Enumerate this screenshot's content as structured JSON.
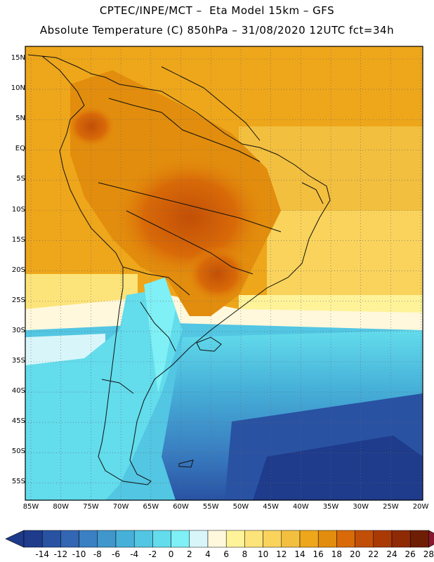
{
  "title_line1": "CPTEC/INPE/MCT –  Eta Model 15km – GFS",
  "title_line2": "Absolute Temperature (C) 850hPa – 31/08/2020 12UTC fct=34h",
  "lat_labels": [
    "15N",
    "10N",
    "5N",
    "EQ",
    "5S",
    "10S",
    "15S",
    "20S",
    "25S",
    "30S",
    "35S",
    "40S",
    "45S",
    "50S",
    "55S"
  ],
  "lon_labels": [
    "85W",
    "80W",
    "75W",
    "70W",
    "65W",
    "60W",
    "55W",
    "50W",
    "45W",
    "40W",
    "35W",
    "30W",
    "25W",
    "20W"
  ],
  "colorbar": {
    "ticks": [
      "-14",
      "-12",
      "-10",
      "-8",
      "-6",
      "-4",
      "-2",
      "0",
      "2",
      "4",
      "6",
      "8",
      "10",
      "12",
      "14",
      "16",
      "18",
      "20",
      "22",
      "24",
      "26",
      "28"
    ],
    "colors": [
      "#1f3b8c",
      "#2952a3",
      "#3366b3",
      "#3a80c2",
      "#3f97cc",
      "#46b0d8",
      "#52c6e3",
      "#63dcec",
      "#7ff0f5",
      "#d8f6fa",
      "#fff8dc",
      "#fff39a",
      "#fde47a",
      "#f9d35c",
      "#f2bf3f",
      "#eea61b",
      "#e28d0d",
      "#d96a08",
      "#c24f07",
      "#a93a06",
      "#8e2a05",
      "#6e1e04",
      "#8a1830"
    ]
  }
}
